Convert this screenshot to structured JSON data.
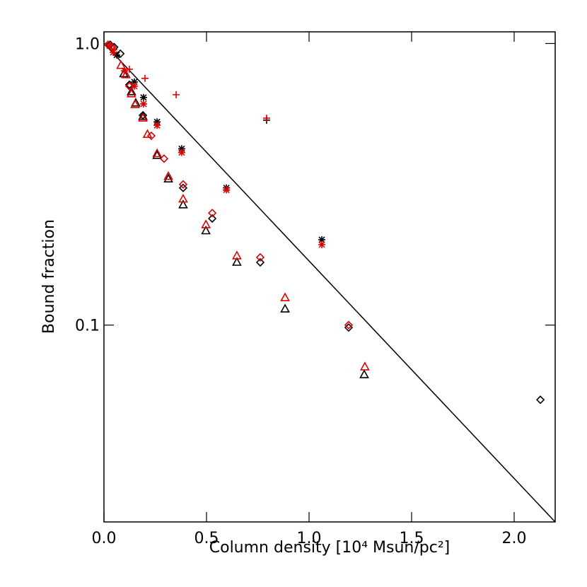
{
  "chart_data": {
    "type": "scatter",
    "xlabel": "Column density [10⁴ Msun/pc²]",
    "ylabel": "Bound fraction",
    "xlim": [
      0,
      2.2
    ],
    "ylim": [
      0.02,
      1.1
    ],
    "ylog": true,
    "xticks": [
      {
        "value": 0,
        "label": "0.0"
      },
      0.5,
      {
        "value": 1,
        "label": "1.0"
      },
      1.5,
      {
        "value": 2,
        "label": "2.0"
      }
    ],
    "yticks": [
      {
        "value": 1,
        "label": "1.0"
      },
      0.1
    ],
    "model_line": {
      "x": [
        0,
        2.2
      ],
      "values": [
        1.0,
        0.02
      ],
      "color": "#000000"
    },
    "series": [
      {
        "marker": "diamond",
        "color": "#000000",
        "x": [
          2.128,
          1.193,
          0.762,
          0.528,
          0.386,
          0.19,
          0.124,
          0.08,
          0.05,
          0.03
        ],
        "values": [
          0.0543,
          0.098,
          0.167,
          0.239,
          0.307,
          0.556,
          0.714,
          0.92,
          0.97,
          0.99
        ]
      },
      {
        "marker": "triangle",
        "color": "#000000",
        "x": [
          1.269,
          0.883,
          0.648,
          0.497,
          0.386,
          0.314,
          0.259,
          0.19,
          0.155,
          0.134,
          0.097
        ],
        "values": [
          0.0666,
          0.114,
          0.167,
          0.216,
          0.267,
          0.33,
          0.4,
          0.55,
          0.614,
          0.673,
          0.78
        ]
      },
      {
        "marker": "asterisk",
        "color": "#000000",
        "x": [
          1.062,
          0.597,
          0.379,
          0.259,
          0.193,
          0.148,
          0.062
        ],
        "values": [
          0.201,
          0.307,
          0.423,
          0.527,
          0.643,
          0.73,
          0.91
        ]
      },
      {
        "marker": "plus",
        "color": "#000000",
        "x": [
          0.793
        ],
        "values": [
          0.534
        ]
      },
      {
        "marker": "diamond",
        "color": "#dd0000",
        "x": [
          1.193,
          0.762,
          0.528,
          0.386,
          0.293,
          0.231,
          0.124,
          0.04,
          0.02
        ],
        "values": [
          0.1,
          0.174,
          0.25,
          0.316,
          0.39,
          0.47,
          0.705,
          0.97,
          0.99
        ]
      },
      {
        "marker": "triangle",
        "color": "#dd0000",
        "x": [
          1.272,
          0.883,
          0.648,
          0.497,
          0.386,
          0.314,
          0.259,
          0.212,
          0.19,
          0.152,
          0.134,
          0.107,
          0.083
        ],
        "values": [
          0.071,
          0.125,
          0.176,
          0.227,
          0.28,
          0.337,
          0.406,
          0.475,
          0.543,
          0.606,
          0.662,
          0.774,
          0.835
        ]
      },
      {
        "marker": "asterisk",
        "color": "#dd0000",
        "x": [
          1.062,
          0.597,
          0.379,
          0.259,
          0.193,
          0.148,
          0.1,
          0.045,
          0.028
        ],
        "values": [
          0.193,
          0.302,
          0.41,
          0.512,
          0.61,
          0.705,
          0.8,
          0.93,
          0.98
        ]
      },
      {
        "marker": "plus",
        "color": "#dd0000",
        "x": [
          0.352,
          0.793,
          0.2,
          0.124,
          0.048
        ],
        "values": [
          0.658,
          0.543,
          0.752,
          0.81,
          0.95
        ]
      }
    ]
  }
}
